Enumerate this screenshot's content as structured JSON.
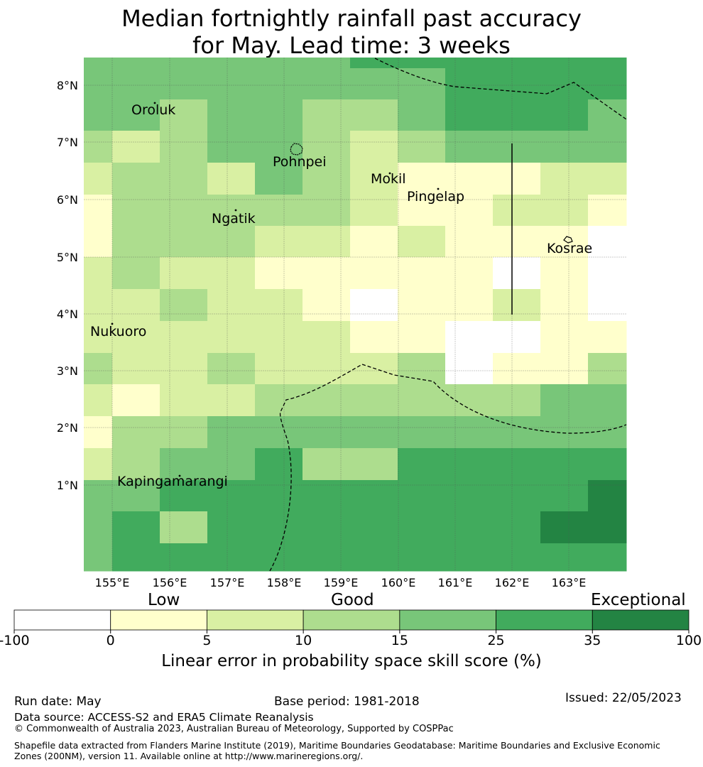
{
  "title": {
    "line1": "Median fortnightly rainfall past accuracy",
    "line2": "for May. Lead time: 3 weeks"
  },
  "map": {
    "lon_ticks": [
      "155°E",
      "156°E",
      "157°E",
      "158°E",
      "159°E",
      "160°E",
      "161°E",
      "162°E",
      "163°E"
    ],
    "lat_ticks": [
      "8°N",
      "7°N",
      "6°N",
      "5°N",
      "4°N",
      "3°N",
      "2°N",
      "1°N"
    ],
    "lon_range": [
      154.5,
      164.0
    ],
    "lat_range": [
      -0.5,
      8.5
    ],
    "grid": true,
    "places": [
      "Oroluk",
      "Pohnpei",
      "Mokil",
      "Pingelap",
      "Ngatik",
      "Kosrae",
      "Nukuoro",
      "Kapingamarangi"
    ],
    "skill_grid_legend_classes": "rows top-to-bottom, values are colour class 0-6",
    "colors": [
      "#ffffff",
      "#ffffcc",
      "#d9f0a3",
      "#addd8e",
      "#78c679",
      "#41ab5d",
      "#238443"
    ]
  },
  "colorbar": {
    "ticks": [
      "-100",
      "0",
      "5",
      "10",
      "15",
      "25",
      "35",
      "100"
    ],
    "categories": [
      "Low",
      "Good",
      "Exceptional"
    ],
    "title": "Linear error in probability space skill score (%)"
  },
  "footer": {
    "run_date": "Run date: May",
    "base_period": "Base period: 1981-2018",
    "issued": "Issued: 22/05/2023",
    "data_source": "Data source: ACCESS-S2 and ERA5 Climate Reanalysis",
    "copyright": "© Commonwealth of Australia 2023, Australian Bureau of Meteorology, Supported by COSPPac",
    "shapefile": "Shapefile data extracted from Flanders Marine Institute (2019), Maritime Boundaries Geodatabase: Maritime Boundaries and Exclusive Economic Zones (200NM), version 11. Available online at http://www.marineregions.org/."
  }
}
